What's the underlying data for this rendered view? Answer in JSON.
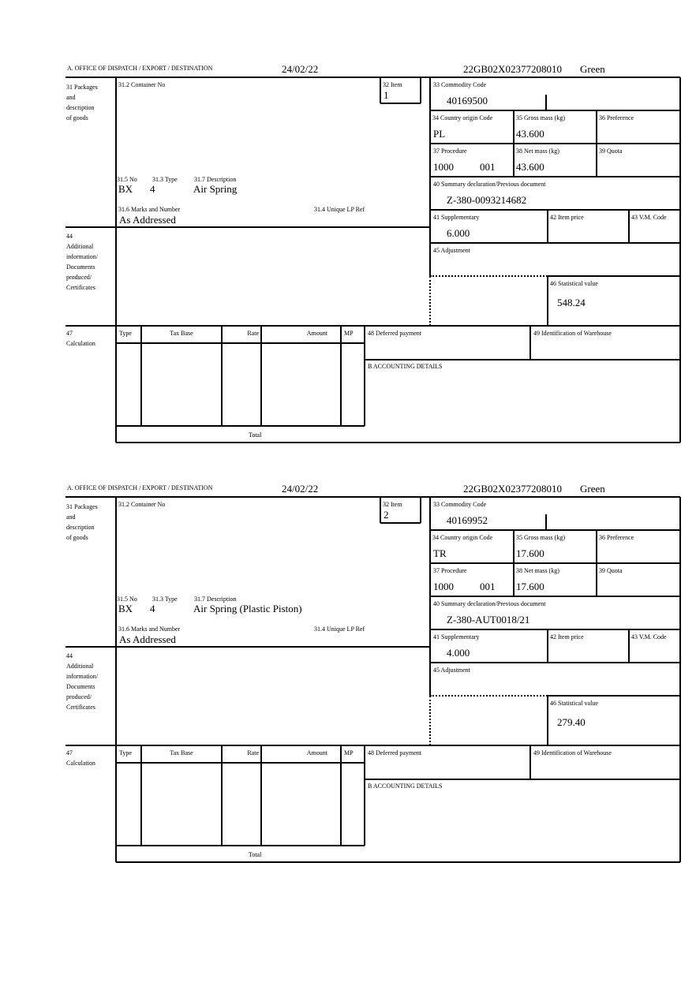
{
  "labels": {
    "office": "A. OFFICE OF DISPATCH / EXPORT / DESTINATION",
    "packages": "31 Packages\nand\ndescription\nof goods",
    "container": "31.2 Container No",
    "item": "32 Item",
    "no": "31.5 No",
    "type": "31.3 Type",
    "description": "31.7 Description",
    "marks": "31.6 Marks and Number",
    "unique_lp": "31.4 Unique LP Ref",
    "additional": "44\nAdditional\ninformation/\nDocuments\nproduced/\nCertificates",
    "commodity": "33 Commodity Code",
    "country": "34 Country origin Code",
    "gross": "35 Gross mass (kg)",
    "preference": "36 Preference",
    "procedure": "37 Procedure",
    "net": "38 Net mass (kg)",
    "quota": "39 Quota",
    "summary": "40 Summary declaration/Previous document",
    "supplementary": "41 Supplementary",
    "item_price": "42 Item price",
    "vm_code": "43 V.M. Code",
    "adjustment": "45 Adjustment",
    "statistical": "46 Statistical value",
    "calc_num": "47",
    "calc": "Calculation",
    "col_type": "Type",
    "col_tax_base": "Tax Base",
    "col_rate": "Rate",
    "col_amount": "Amount",
    "col_mp": "MP",
    "deferred": "48 Deferred payment",
    "warehouse": "49 Identification of Warehouse",
    "accounting": "B ACCOUNTING DETAILS",
    "total": "Total"
  },
  "forms": [
    {
      "date": "24/02/22",
      "reference": "22GB02X02377208010",
      "colour": "Green",
      "item": "1",
      "no": "BX",
      "type": "4",
      "description": "Air Spring",
      "marks": "As Addressed",
      "commodity": "40169500",
      "country": "PL",
      "gross": "43.600",
      "procedure": "1000",
      "procedure_extra": "001",
      "net": "43.600",
      "summary": "Z-380-0093214682",
      "supplementary": "6.000",
      "statistical": "548.24"
    },
    {
      "date": "24/02/22",
      "reference": "22GB02X02377208010",
      "colour": "Green",
      "item": "2",
      "no": "BX",
      "type": "4",
      "description": "Air Spring (Plastic Piston)",
      "marks": "As Addressed",
      "commodity": "40169952",
      "country": "TR",
      "gross": "17.600",
      "procedure": "1000",
      "procedure_extra": "001",
      "net": "17.600",
      "summary": "Z-380-AUT0018/21",
      "supplementary": "4.000",
      "statistical": "279.40"
    }
  ]
}
